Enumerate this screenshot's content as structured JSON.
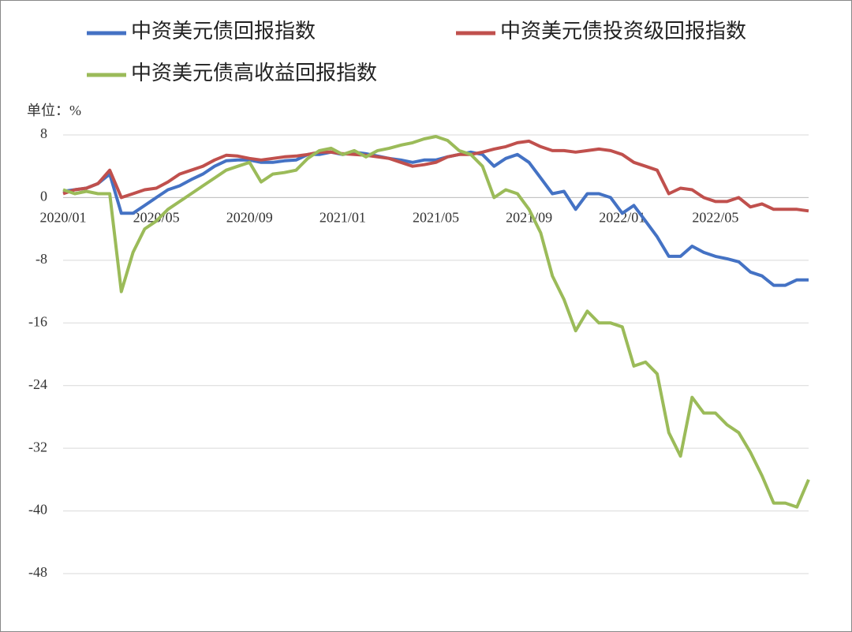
{
  "chart_data": {
    "type": "line",
    "unit_label": "单位：%",
    "categories": [
      "2020/01",
      null,
      null,
      null,
      null,
      null,
      null,
      null,
      "2020/05",
      null,
      null,
      null,
      null,
      null,
      null,
      null,
      "2020/09",
      null,
      null,
      null,
      null,
      null,
      null,
      null,
      "2021/01",
      null,
      null,
      null,
      null,
      null,
      null,
      null,
      "2021/05",
      null,
      null,
      null,
      null,
      null,
      null,
      null,
      "2021/09",
      null,
      null,
      null,
      null,
      null,
      null,
      null,
      "2022/01",
      null,
      null,
      null,
      null,
      null,
      null,
      null,
      "2022/05",
      null,
      null,
      null,
      null,
      null,
      null,
      null,
      null
    ],
    "series": [
      {
        "name": "中资美元债回报指数",
        "color": "#4472c4",
        "values": [
          0.8,
          1,
          1.2,
          1.8,
          3,
          -2,
          -2,
          -1,
          0,
          1,
          1.5,
          2.3,
          3,
          4,
          4.7,
          4.8,
          4.8,
          4.5,
          4.5,
          4.7,
          4.8,
          5.5,
          5.5,
          5.8,
          5.5,
          5.8,
          5.6,
          5.3,
          5.0,
          4.8,
          4.5,
          4.8,
          4.8,
          5.2,
          5.5,
          5.8,
          5.5,
          4,
          5,
          5.5,
          4.5,
          2.5,
          0.5,
          0.8,
          -1.5,
          0.5,
          0.5,
          0,
          -2,
          -1,
          -3,
          -5,
          -7.5,
          -7.5,
          -6.2,
          -7,
          -7.5,
          -7.8,
          -8.2,
          -9.5,
          -10,
          -11.2,
          -11.2,
          -10.5,
          -10.5
        ]
      },
      {
        "name": "中资美元债投资级回报指数",
        "color": "#c0504d",
        "values": [
          0.5,
          1,
          1.2,
          1.8,
          3.5,
          0,
          0.5,
          1,
          1.2,
          2,
          3,
          3.5,
          4,
          4.8,
          5.4,
          5.3,
          5,
          4.8,
          5,
          5.2,
          5.3,
          5.5,
          5.8,
          5.8,
          5.6,
          5.5,
          5.4,
          5.2,
          5,
          4.5,
          4,
          4.2,
          4.5,
          5.2,
          5.5,
          5.5,
          5.8,
          6.2,
          6.5,
          7,
          7.2,
          6.5,
          6,
          6,
          5.8,
          6,
          6.2,
          6,
          5.5,
          4.5,
          4,
          3.5,
          0.5,
          1.2,
          1,
          0,
          -0.5,
          -0.5,
          0,
          -1.2,
          -0.8,
          -1.5,
          -1.5,
          -1.5,
          -1.7
        ]
      },
      {
        "name": "中资美元债高收益回报指数",
        "color": "#9bbb59",
        "values": [
          1,
          0.5,
          0.8,
          0.5,
          0.5,
          -12,
          -7,
          -4,
          -3,
          -1.5,
          -0.5,
          0.5,
          1.5,
          2.5,
          3.5,
          4,
          4.5,
          2,
          3,
          3.2,
          3.5,
          5,
          6,
          6.3,
          5.5,
          6,
          5.2,
          6,
          6.3,
          6.7,
          7,
          7.5,
          7.8,
          7.3,
          6,
          5.5,
          4,
          0,
          1,
          0.5,
          -1.5,
          -4.5,
          -10,
          -13,
          -17,
          -14.5,
          -16,
          -16,
          -16.5,
          -21.5,
          -21,
          -22.5,
          -30,
          -33,
          -25.5,
          -27.5,
          -27.5,
          -29,
          -30,
          -32.5,
          -35.5,
          -39,
          -39,
          -39.5,
          -36
        ]
      }
    ],
    "ylim": [
      -48,
      8
    ],
    "yticks": [
      8,
      0,
      -8,
      -16,
      -24,
      -32,
      -40,
      -48
    ],
    "grid": true,
    "legend": "top"
  }
}
